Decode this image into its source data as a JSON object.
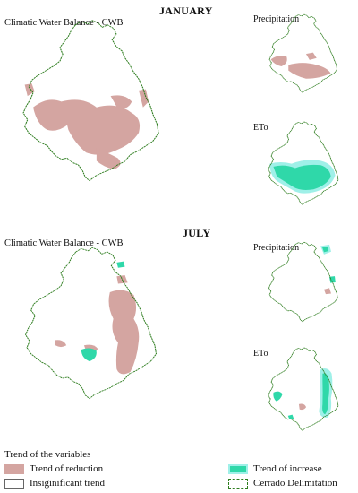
{
  "periods": {
    "january": {
      "heading": "JANUARY",
      "main_label": "Climatic Water Balance - CWB",
      "precip_label": "Precipitation",
      "eto_label": "ETo"
    },
    "july": {
      "heading": "JULY",
      "main_label": "Climatic Water Balance - CWB",
      "precip_label": "Precipitation",
      "eto_label": "ETo"
    }
  },
  "legend": {
    "title": "Trend of the variables",
    "items": [
      {
        "label": "Trend of reduction",
        "color": "#d4a5a1"
      },
      {
        "label": "Insiginificant trend",
        "color": "#ffffff"
      },
      {
        "label": "Trend of increase",
        "color": "#2fd8a9"
      },
      {
        "label": "Cerrado Delimitation",
        "color": "#2e7d1f"
      }
    ]
  },
  "colors": {
    "reduction": "#d4a5a1",
    "increase": "#2fd8a9",
    "increase_halo": "#9ff0e8",
    "border": "#2e7d1f"
  }
}
